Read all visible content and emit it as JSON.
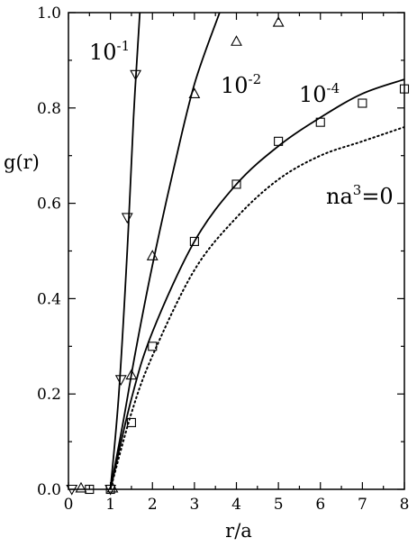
{
  "chart_data": {
    "type": "scatter",
    "xlabel": "r/a",
    "ylabel": "g(r)",
    "xlim": [
      0,
      8
    ],
    "ylim": [
      0,
      1.0
    ],
    "x_ticks": [
      0,
      1,
      2,
      3,
      4,
      5,
      6,
      7,
      8
    ],
    "y_ticks": [
      0.0,
      0.2,
      0.4,
      0.6,
      0.8,
      1.0
    ],
    "x_tick_labels": [
      "0",
      "1",
      "2",
      "3",
      "4",
      "5",
      "6",
      "7",
      "8"
    ],
    "y_tick_labels": [
      "0.0",
      "0.2",
      "0.4",
      "0.6",
      "0.8",
      "1.0"
    ],
    "grid": false,
    "annotations": [
      {
        "base": "10",
        "sup": "-1"
      },
      {
        "base": "10",
        "sup": "-2"
      },
      {
        "base": "10",
        "sup": "-4"
      },
      {
        "base": "na",
        "sup": "3",
        "suffix": "=0"
      }
    ],
    "series": [
      {
        "marker": "triangle-down",
        "points": [
          [
            0.08,
            0.0
          ],
          [
            1.0,
            0.0
          ],
          [
            1.25,
            0.23
          ],
          [
            1.4,
            0.57
          ],
          [
            1.6,
            0.87
          ]
        ]
      },
      {
        "marker": "triangle-up",
        "points": [
          [
            0.3,
            0.003
          ],
          [
            1.05,
            0.003
          ],
          [
            1.5,
            0.24
          ],
          [
            2.0,
            0.49
          ],
          [
            3.0,
            0.83
          ],
          [
            4.0,
            0.94
          ],
          [
            5.0,
            0.98
          ]
        ]
      },
      {
        "marker": "square",
        "points": [
          [
            0.5,
            0.0
          ],
          [
            1.0,
            0.0
          ],
          [
            1.5,
            0.14
          ],
          [
            2.0,
            0.3
          ],
          [
            3.0,
            0.52
          ],
          [
            4.0,
            0.64
          ],
          [
            5.0,
            0.73
          ],
          [
            6.0,
            0.77
          ],
          [
            7.0,
            0.81
          ],
          [
            8.0,
            0.84
          ]
        ]
      }
    ],
    "curves": [
      {
        "style": "solid",
        "points": [
          [
            1.0,
            0.0
          ],
          [
            1.2,
            0.2
          ],
          [
            1.4,
            0.5
          ],
          [
            1.55,
            0.78
          ],
          [
            1.7,
            1.0
          ]
        ]
      },
      {
        "style": "solid",
        "points": [
          [
            1.0,
            0.0
          ],
          [
            1.3,
            0.14
          ],
          [
            1.6,
            0.29
          ],
          [
            2.0,
            0.47
          ],
          [
            2.5,
            0.67
          ],
          [
            3.0,
            0.85
          ],
          [
            3.6,
            1.0
          ]
        ]
      },
      {
        "style": "solid",
        "points": [
          [
            1.0,
            0.0
          ],
          [
            1.5,
            0.19
          ],
          [
            2.0,
            0.33
          ],
          [
            3.0,
            0.52
          ],
          [
            4.0,
            0.64
          ],
          [
            5.0,
            0.72
          ],
          [
            6.0,
            0.78
          ],
          [
            7.0,
            0.83
          ],
          [
            8.0,
            0.86
          ]
        ]
      },
      {
        "style": "dotted",
        "points": [
          [
            1.0,
            0.0
          ],
          [
            1.5,
            0.16
          ],
          [
            2.0,
            0.28
          ],
          [
            3.0,
            0.46
          ],
          [
            4.0,
            0.57
          ],
          [
            5.0,
            0.65
          ],
          [
            6.0,
            0.7
          ],
          [
            7.0,
            0.73
          ],
          [
            8.0,
            0.76
          ]
        ]
      }
    ]
  }
}
